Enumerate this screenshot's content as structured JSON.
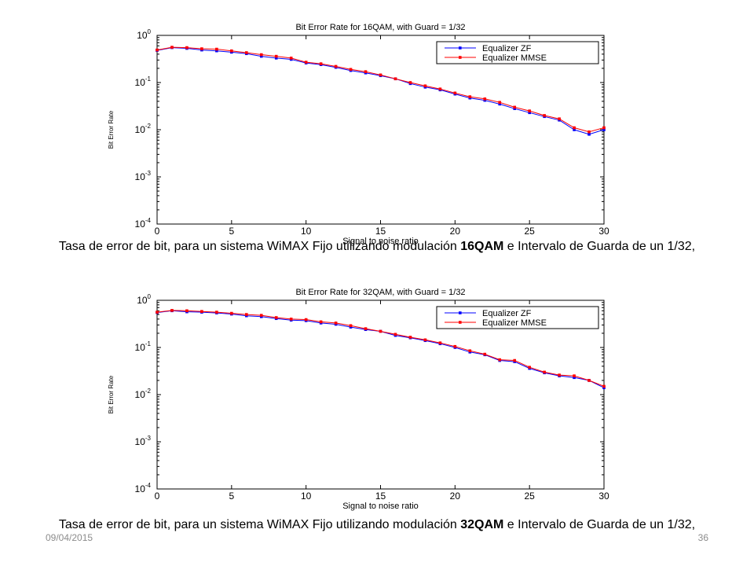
{
  "slide": {
    "date": "09/04/2015",
    "page_number": "36"
  },
  "captions": [
    {
      "prefix": "Tasa de error de bit, para un sistema WiMAX Fijo utilizando modulación ",
      "bold": "16QAM",
      "suffix": " e Intervalo de Guarda de un 1/32,"
    },
    {
      "prefix": "Tasa de error de bit, para un sistema WiMAX Fijo utilizando modulación ",
      "bold": "32QAM",
      "suffix": " e Intervalo de Guarda de un 1/32,"
    }
  ],
  "chart_data": [
    {
      "type": "line",
      "title": "Bit Error Rate for 16QAM, with Guard = 1/32",
      "xlabel": "Signal to noise ratio",
      "ylabel": "Bit Error Rate",
      "xlim": [
        0,
        30
      ],
      "ylim": [
        0.0001,
        1
      ],
      "yscale": "log",
      "xticks": [
        "0",
        "5",
        "10",
        "15",
        "20",
        "25",
        "30"
      ],
      "yticks": [
        "10^0",
        "10^-1",
        "10^-2",
        "10^-3",
        "10^-4"
      ],
      "legend_position": "top-right",
      "grid": false,
      "x": [
        0,
        1,
        2,
        3,
        4,
        5,
        6,
        7,
        8,
        9,
        10,
        11,
        12,
        13,
        14,
        15,
        16,
        17,
        18,
        19,
        20,
        21,
        22,
        23,
        24,
        25,
        26,
        27,
        28,
        29,
        30
      ],
      "series": [
        {
          "name": "Equalizer ZF",
          "color": "#0000ff",
          "values": [
            0.48,
            0.55,
            0.53,
            0.49,
            0.47,
            0.44,
            0.41,
            0.36,
            0.33,
            0.31,
            0.26,
            0.24,
            0.21,
            0.18,
            0.16,
            0.14,
            0.12,
            0.095,
            0.08,
            0.07,
            0.057,
            0.047,
            0.042,
            0.035,
            0.028,
            0.023,
            0.019,
            0.016,
            0.01,
            0.008,
            0.01
          ]
        },
        {
          "name": "Equalizer MMSE",
          "color": "#ff0000",
          "values": [
            0.49,
            0.56,
            0.55,
            0.52,
            0.51,
            0.47,
            0.43,
            0.39,
            0.36,
            0.33,
            0.27,
            0.25,
            0.22,
            0.19,
            0.17,
            0.145,
            0.12,
            0.1,
            0.085,
            0.073,
            0.06,
            0.05,
            0.045,
            0.038,
            0.03,
            0.025,
            0.02,
            0.017,
            0.011,
            0.009,
            0.011
          ]
        }
      ]
    },
    {
      "type": "line",
      "title": "Bit Error Rate for 32QAM, with Guard = 1/32",
      "xlabel": "Signal to noise ratio",
      "ylabel": "Bit Error Rate",
      "xlim": [
        0,
        30
      ],
      "ylim": [
        0.0001,
        1
      ],
      "yscale": "log",
      "xticks": [
        "0",
        "5",
        "10",
        "15",
        "20",
        "25",
        "30"
      ],
      "yticks": [
        "10^0",
        "10^-1",
        "10^-2",
        "10^-3",
        "10^-4"
      ],
      "legend_position": "top-right",
      "grid": false,
      "x": [
        0,
        1,
        2,
        3,
        4,
        5,
        6,
        7,
        8,
        9,
        10,
        11,
        12,
        13,
        14,
        15,
        16,
        17,
        18,
        19,
        20,
        21,
        22,
        23,
        24,
        25,
        26,
        27,
        28,
        29,
        30
      ],
      "series": [
        {
          "name": "Equalizer ZF",
          "color": "#0000ff",
          "values": [
            0.55,
            0.6,
            0.57,
            0.56,
            0.54,
            0.51,
            0.47,
            0.45,
            0.41,
            0.38,
            0.37,
            0.33,
            0.31,
            0.27,
            0.24,
            0.22,
            0.18,
            0.16,
            0.14,
            0.12,
            0.1,
            0.08,
            0.07,
            0.053,
            0.05,
            0.036,
            0.029,
            0.025,
            0.023,
            0.02,
            0.014
          ]
        },
        {
          "name": "Equalizer MMSE",
          "color": "#ff0000",
          "values": [
            0.56,
            0.61,
            0.6,
            0.58,
            0.56,
            0.53,
            0.5,
            0.48,
            0.43,
            0.4,
            0.39,
            0.35,
            0.33,
            0.29,
            0.25,
            0.22,
            0.19,
            0.165,
            0.145,
            0.125,
            0.105,
            0.085,
            0.072,
            0.055,
            0.053,
            0.038,
            0.03,
            0.026,
            0.025,
            0.02,
            0.015
          ]
        }
      ]
    }
  ]
}
